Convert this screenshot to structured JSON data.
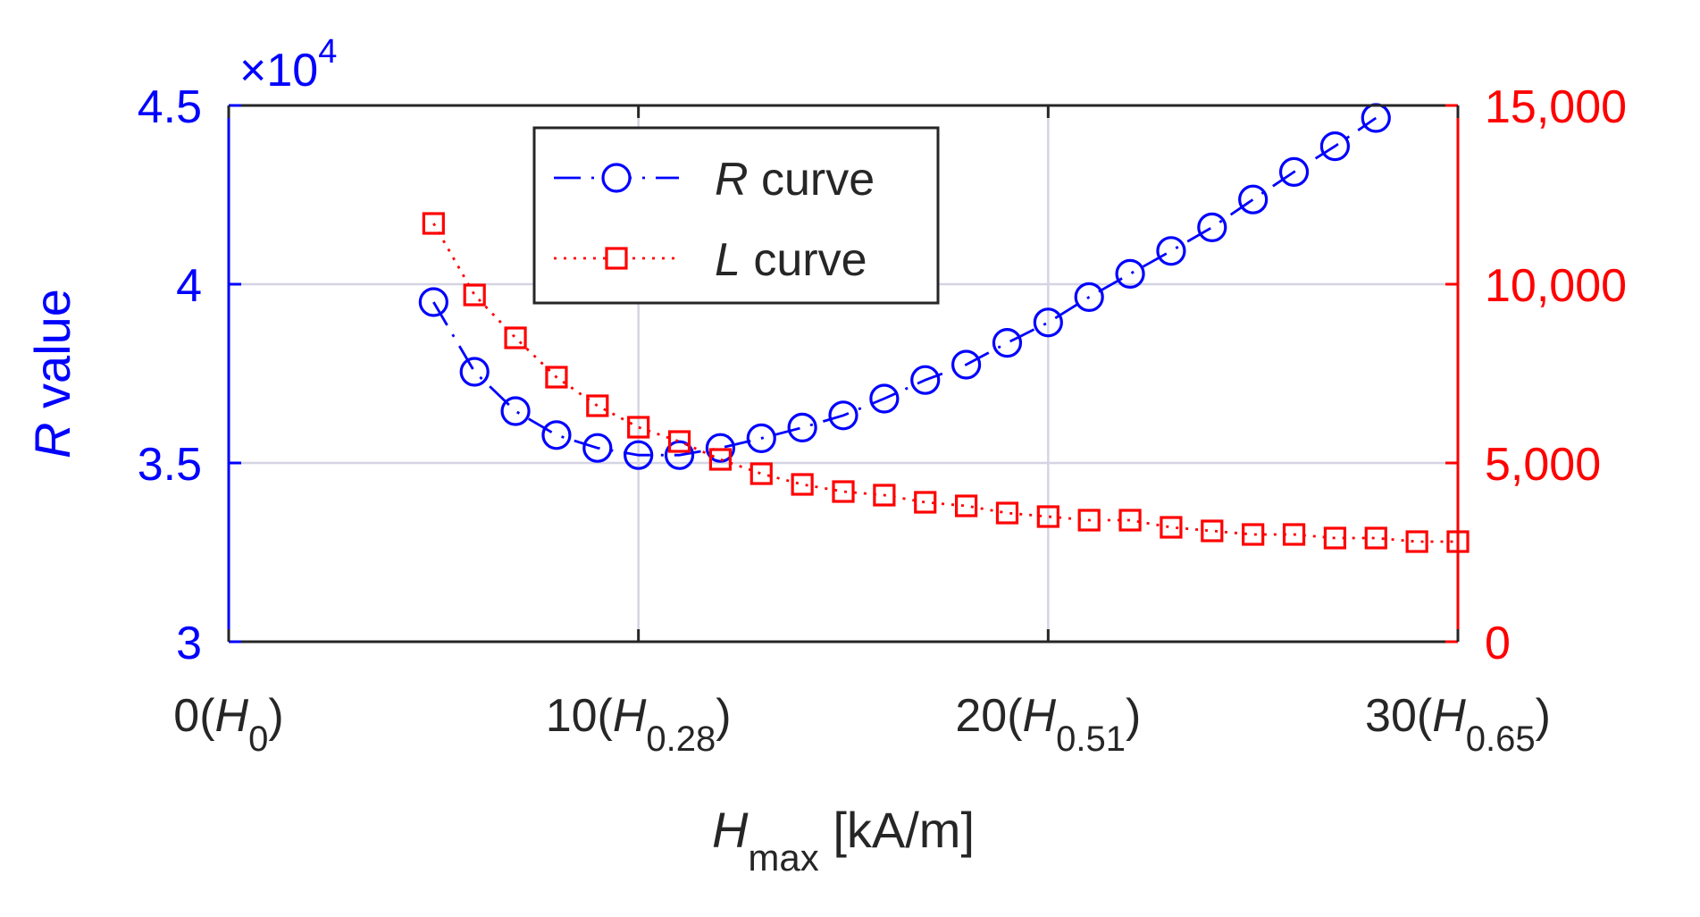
{
  "chart_data": {
    "type": "line",
    "x": [
      5,
      6,
      7,
      8,
      9,
      10,
      11,
      12,
      13,
      14,
      15,
      16,
      17,
      18,
      19,
      20,
      21,
      22,
      23,
      24,
      25,
      26,
      27,
      28,
      29,
      30
    ],
    "series": [
      {
        "name": "R curve",
        "legend_italic": "R",
        "legend_rest": " curve",
        "axis": "left",
        "color": "#0000ff",
        "marker": "circle",
        "line_style": "dashdot",
        "x": [
          5,
          6,
          7,
          8,
          9,
          10,
          11,
          12,
          13,
          14,
          15,
          16,
          17,
          18,
          19,
          20,
          21,
          22,
          23,
          24,
          25,
          26,
          27,
          28
        ],
        "values": [
          39500,
          37550,
          36450,
          35780,
          35420,
          35220,
          35220,
          35420,
          35690,
          35990,
          36330,
          36800,
          37320,
          37750,
          38360,
          38930,
          39640,
          40290,
          40930,
          41590,
          42370,
          43140,
          43860,
          44650
        ]
      },
      {
        "name": "L curve",
        "legend_italic": "L",
        "legend_rest": " curve",
        "axis": "right",
        "color": "#ff0000",
        "marker": "square",
        "line_style": "dotted",
        "x": [
          5,
          6,
          7,
          8,
          9,
          10,
          11,
          12,
          13,
          14,
          15,
          16,
          17,
          18,
          19,
          20,
          21,
          22,
          23,
          24,
          25,
          26,
          27,
          28,
          29,
          30
        ],
        "values": [
          11700,
          9700,
          8500,
          7400,
          6600,
          6000,
          5600,
          5100,
          4700,
          4400,
          4200,
          4100,
          3900,
          3800,
          3600,
          3500,
          3400,
          3400,
          3200,
          3100,
          3000,
          3000,
          2900,
          2900,
          2800,
          2800
        ]
      }
    ],
    "xlim": [
      0,
      30
    ],
    "ylim_left": [
      30000,
      45000
    ],
    "ylim_right": [
      0,
      15000
    ],
    "xticks": [
      {
        "value": 0,
        "main": "0(",
        "italic": "H",
        "sub": "0",
        "close": ")"
      },
      {
        "value": 10,
        "main": "10(",
        "italic": "H",
        "sub": "0.28",
        "close": ")"
      },
      {
        "value": 20,
        "main": "20(",
        "italic": "H",
        "sub": "0.51",
        "close": ")"
      },
      {
        "value": 30,
        "main": "30(",
        "italic": "H",
        "sub": "0.65",
        "close": ")"
      }
    ],
    "yticks_left": [
      {
        "value": 30000,
        "label": "3"
      },
      {
        "value": 35000,
        "label": "3.5"
      },
      {
        "value": 40000,
        "label": "4"
      },
      {
        "value": 45000,
        "label": "4.5"
      }
    ],
    "yticks_right": [
      {
        "value": 0,
        "label": "0"
      },
      {
        "value": 5000,
        "label": "5,000"
      },
      {
        "value": 10000,
        "label": "10,000"
      },
      {
        "value": 15000,
        "label": "15,000"
      }
    ],
    "left_multiplier": {
      "prefix": "×10",
      "exponent": "4"
    },
    "xlabel": {
      "italic": "H",
      "sub": "max",
      "rest": " [kA/m]"
    },
    "ylabel_left": {
      "italic": "R",
      "rest": " value"
    },
    "grid": true,
    "legend_position": "top-left",
    "colors": {
      "left_axis": "#0000ff",
      "right_axis": "#ff0000",
      "text": "#262626",
      "grid": "#d4d4e4"
    }
  }
}
